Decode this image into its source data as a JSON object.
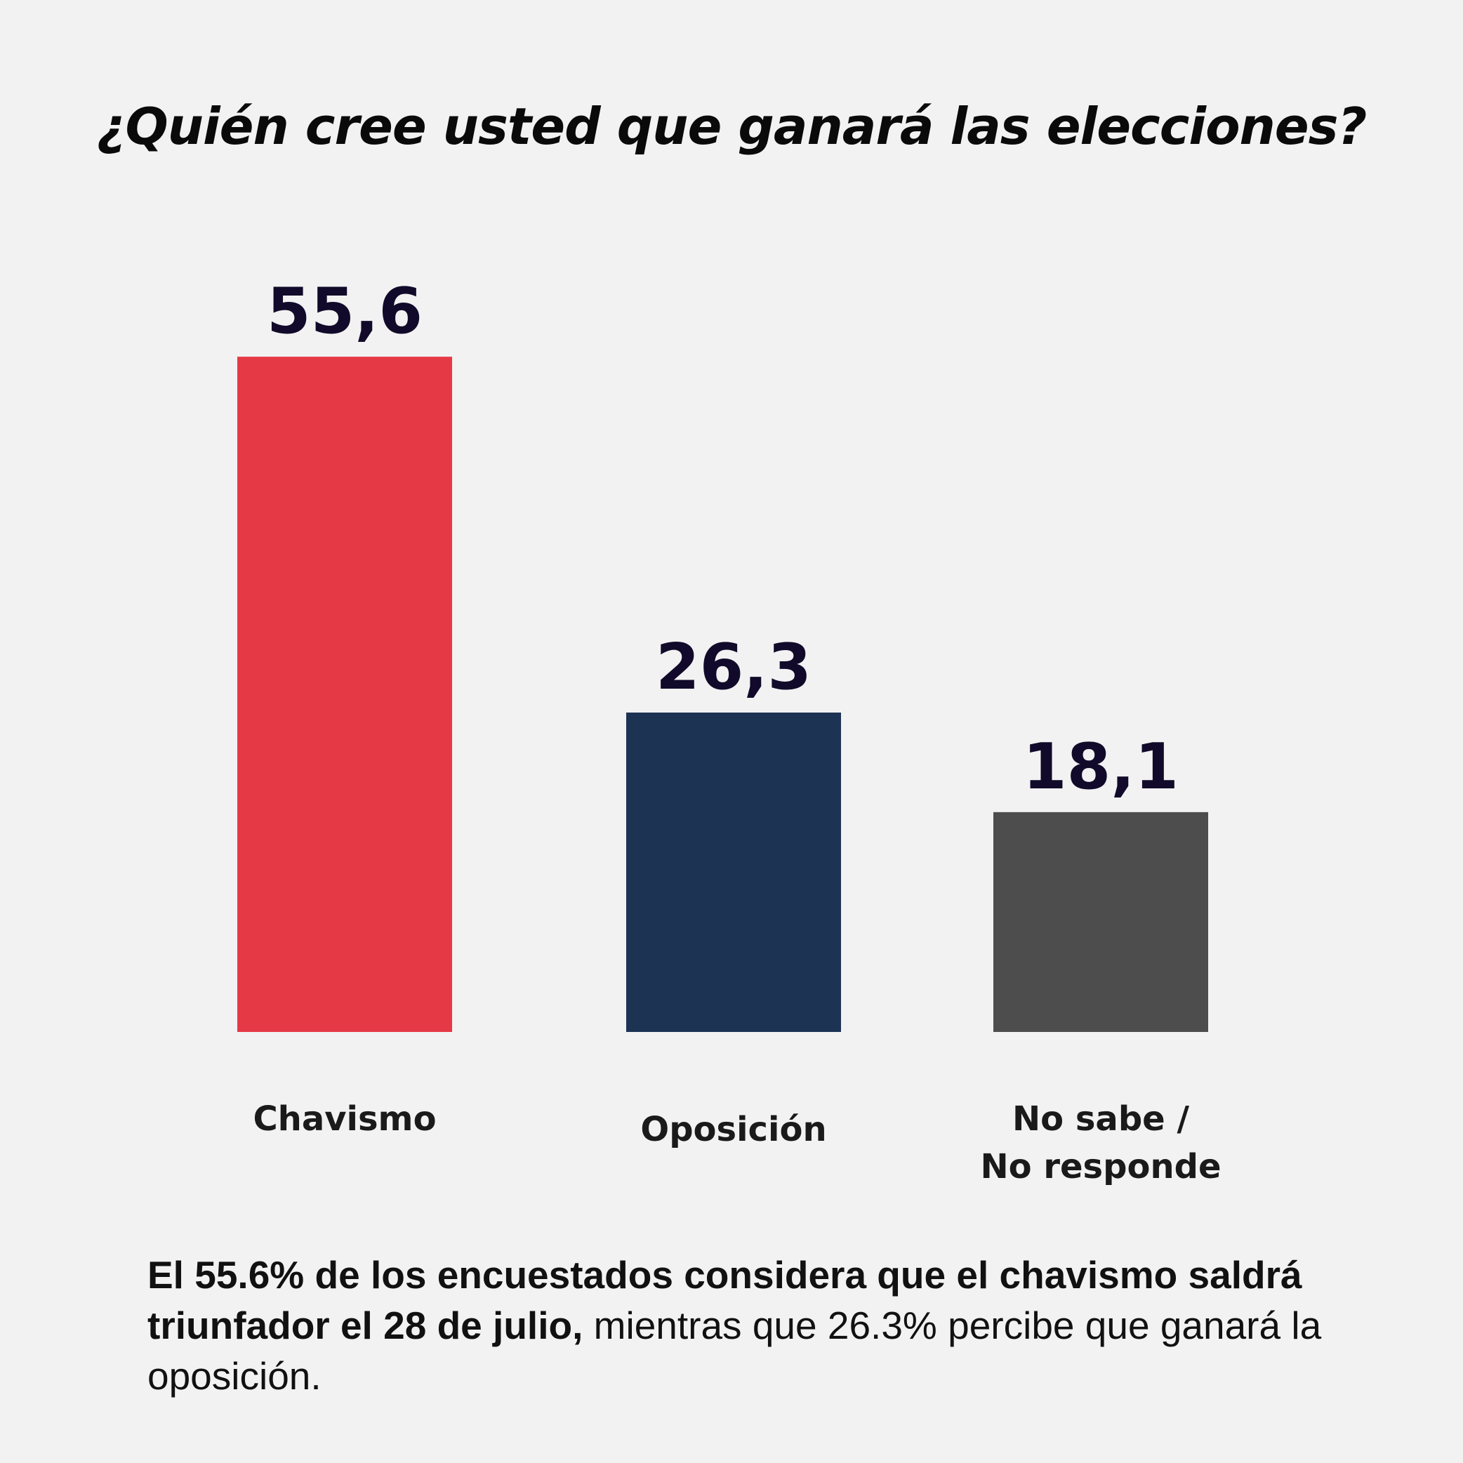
{
  "title": "¿Quién cree usted que ganará las elecciones?",
  "chart_data": {
    "type": "bar",
    "title": "¿Quién cree usted que ganará las elecciones?",
    "categories": [
      [
        "Chavismo"
      ],
      [
        "Oposición"
      ],
      [
        "No sabe /",
        "No responde"
      ]
    ],
    "values": [
      55.6,
      26.3,
      18.1
    ],
    "value_labels": [
      "55,6",
      "26,3",
      "18,1"
    ],
    "colors": [
      "#e63946",
      "#1d3354",
      "#4d4d4d"
    ],
    "label_color": "#110a2a",
    "xlabel": "",
    "ylabel": "",
    "grid": false
  },
  "footnote": {
    "bold": "El 55.6% de los encuestados considera que el chavismo saldrá triunfador el 28 de julio,",
    "regular": " mientras que 26.3% percibe que ganará la oposición."
  }
}
